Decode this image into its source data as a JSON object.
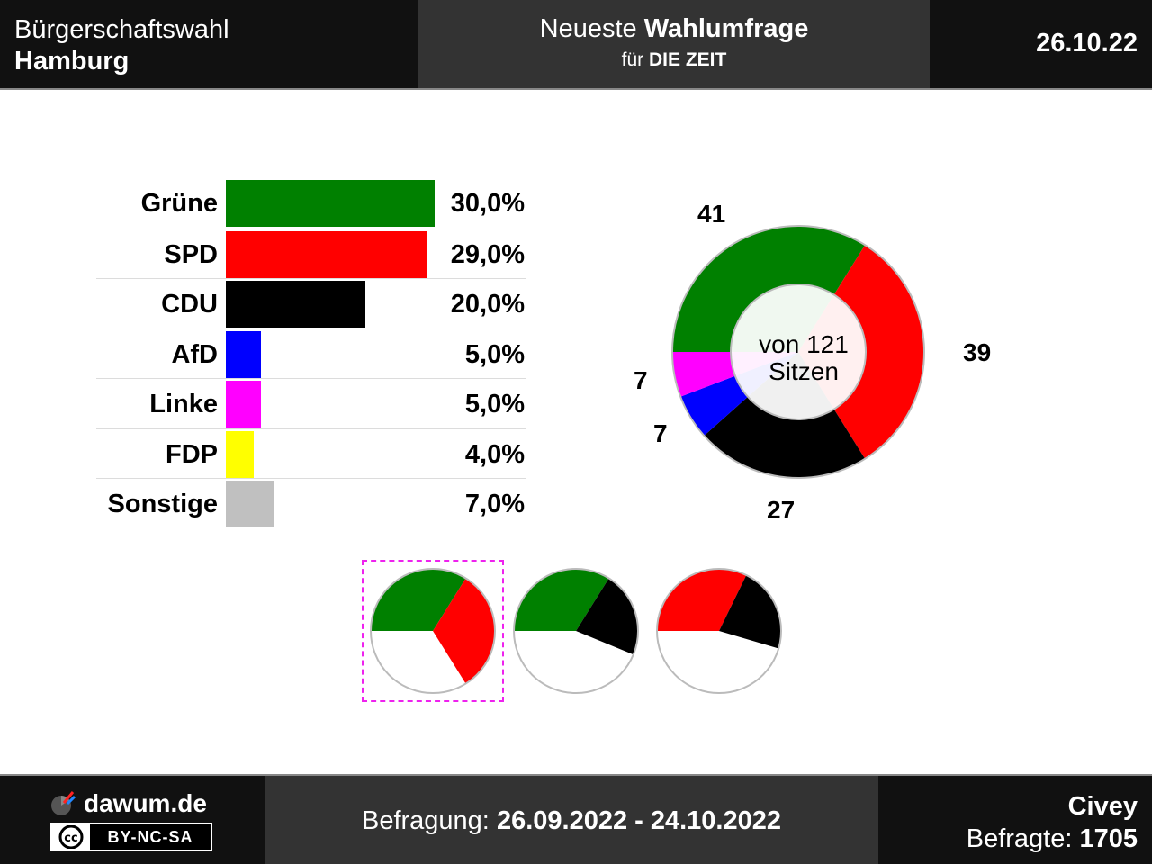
{
  "header": {
    "left_line1": "Bürgerschaftswahl",
    "left_line2": "Hamburg",
    "mid_line1_normal": "Neueste ",
    "mid_line1_bold": "Wahlumfrage",
    "mid_line2_normal": "für ",
    "mid_line2_bold": "DIE ZEIT",
    "date": "26.10.22"
  },
  "chart_data": [
    {
      "type": "bar",
      "orientation": "horizontal",
      "categories": [
        "Grüne",
        "SPD",
        "CDU",
        "AfD",
        "Linke",
        "FDP",
        "Sonstige"
      ],
      "values": [
        30.0,
        29.0,
        20.0,
        5.0,
        5.0,
        4.0,
        7.0
      ],
      "value_labels": [
        "30,0%",
        "29,0%",
        "20,0%",
        "5,0%",
        "5,0%",
        "4,0%",
        "7,0%"
      ],
      "colors": [
        "#008000",
        "#ff0000",
        "#000000",
        "#0000ff",
        "#ff00ff",
        "#ffff00",
        "#c0c0c0"
      ],
      "xlim": [
        0,
        30
      ]
    },
    {
      "type": "pie",
      "style": "donut",
      "total_seats": 121,
      "center_label_line1": "von 121",
      "center_label_line2": "Sitzen",
      "segments": [
        {
          "party": "Grüne",
          "seats": 41,
          "label": "41",
          "color": "#008000"
        },
        {
          "party": "SPD",
          "seats": 39,
          "label": "39",
          "color": "#ff0000"
        },
        {
          "party": "CDU",
          "seats": 27,
          "label": "27",
          "color": "#000000"
        },
        {
          "party": "AfD",
          "seats": 7,
          "label": "7",
          "color": "#0000ff"
        },
        {
          "party": "Linke",
          "seats": 7,
          "label": "7",
          "color": "#ff00ff"
        }
      ]
    },
    {
      "type": "pie",
      "style": "coalition-mini",
      "total_seats": 121,
      "coalitions": [
        {
          "parties": [
            "Grüne",
            "SPD"
          ],
          "seats": [
            41,
            39
          ],
          "colors": [
            "#008000",
            "#ff0000"
          ],
          "highlighted": true
        },
        {
          "parties": [
            "Grüne",
            "CDU"
          ],
          "seats": [
            41,
            27
          ],
          "colors": [
            "#008000",
            "#000000"
          ],
          "highlighted": false
        },
        {
          "parties": [
            "SPD",
            "CDU"
          ],
          "seats": [
            39,
            27
          ],
          "colors": [
            "#ff0000",
            "#000000"
          ],
          "highlighted": false
        }
      ]
    }
  ],
  "footer": {
    "site": "dawum.de",
    "license": "BY-NC-SA",
    "cc_icon": "cc",
    "survey_label": "Befragung: ",
    "survey_period": "26.09.2022 - 24.10.2022",
    "institute": "Civey",
    "respondents_label": "Befragte: ",
    "respondents": "1705"
  }
}
